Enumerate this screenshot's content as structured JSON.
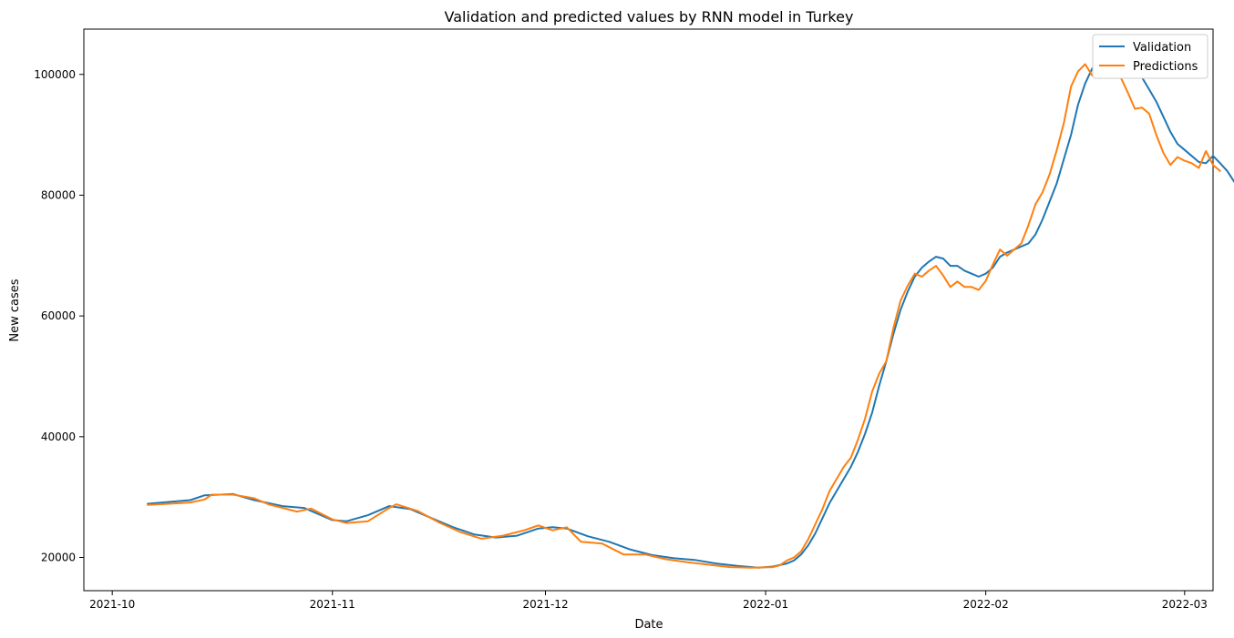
{
  "chart_data": {
    "type": "line",
    "title": "Validation and predicted values by RNN model in Turkey",
    "xlabel": "Date",
    "ylabel": "New cases",
    "x_ticks": [
      "2021-10",
      "2021-11",
      "2021-12",
      "2022-01",
      "2022-02",
      "2022-03"
    ],
    "y_ticks": [
      "20000",
      "40000",
      "60000",
      "80000",
      "100000"
    ],
    "y_tick_values": [
      20000,
      40000,
      60000,
      80000,
      100000
    ],
    "xlim": [
      "2021-09-27",
      "2022-03-05"
    ],
    "ylim": [
      14500,
      107500
    ],
    "grid": false,
    "legend_position": "top-right",
    "colors": {
      "Validation": "#1f77b4",
      "Predictions": "#ff7f0e"
    },
    "series": [
      {
        "name": "Validation",
        "points": [
          [
            "2021-10-06",
            28900
          ],
          [
            "2021-10-09",
            29200
          ],
          [
            "2021-10-12",
            29500
          ],
          [
            "2021-10-14",
            30300
          ],
          [
            "2021-10-18",
            30500
          ],
          [
            "2021-10-21",
            29500
          ],
          [
            "2021-10-25",
            28500
          ],
          [
            "2021-10-28",
            28200
          ],
          [
            "2021-11-01",
            26200
          ],
          [
            "2021-11-03",
            26000
          ],
          [
            "2021-11-06",
            27000
          ],
          [
            "2021-11-09",
            28500
          ],
          [
            "2021-11-12",
            28000
          ],
          [
            "2021-11-15",
            26500
          ],
          [
            "2021-11-18",
            25000
          ],
          [
            "2021-11-21",
            23800
          ],
          [
            "2021-11-24",
            23300
          ],
          [
            "2021-11-27",
            23600
          ],
          [
            "2021-11-30",
            24800
          ],
          [
            "2021-12-02",
            25000
          ],
          [
            "2021-12-04",
            24800
          ],
          [
            "2021-12-07",
            23500
          ],
          [
            "2021-12-10",
            22600
          ],
          [
            "2021-12-13",
            21300
          ],
          [
            "2021-12-16",
            20400
          ],
          [
            "2021-12-19",
            19900
          ],
          [
            "2021-12-22",
            19600
          ],
          [
            "2021-12-25",
            19000
          ],
          [
            "2021-12-28",
            18600
          ],
          [
            "2021-12-31",
            18300
          ],
          [
            "2022-01-02",
            18500
          ],
          [
            "2022-01-04",
            19000
          ],
          [
            "2022-01-05",
            19500
          ],
          [
            "2022-01-06",
            20500
          ],
          [
            "2022-01-07",
            22000
          ],
          [
            "2022-01-08",
            24000
          ],
          [
            "2022-01-09",
            26500
          ],
          [
            "2022-01-10",
            29000
          ],
          [
            "2022-01-11",
            31000
          ],
          [
            "2022-01-12",
            33000
          ],
          [
            "2022-01-13",
            35000
          ],
          [
            "2022-01-14",
            37500
          ],
          [
            "2022-01-15",
            40500
          ],
          [
            "2022-01-16",
            44000
          ],
          [
            "2022-01-17",
            48500
          ],
          [
            "2022-01-18",
            52500
          ],
          [
            "2022-01-19",
            57000
          ],
          [
            "2022-01-20",
            61000
          ],
          [
            "2022-01-21",
            64000
          ],
          [
            "2022-01-22",
            66500
          ],
          [
            "2022-01-23",
            68000
          ],
          [
            "2022-01-24",
            69000
          ],
          [
            "2022-01-25",
            69800
          ],
          [
            "2022-01-26",
            69500
          ],
          [
            "2022-01-27",
            68300
          ],
          [
            "2022-01-28",
            68300
          ],
          [
            "2022-01-29",
            67500
          ],
          [
            "2022-01-30",
            67000
          ],
          [
            "2022-01-31",
            66500
          ],
          [
            "2022-02-01",
            67000
          ],
          [
            "2022-02-02",
            68000
          ],
          [
            "2022-02-03",
            69800
          ],
          [
            "2022-02-04",
            70500
          ],
          [
            "2022-02-05",
            71000
          ],
          [
            "2022-02-06",
            71500
          ],
          [
            "2022-02-07",
            72000
          ],
          [
            "2022-02-08",
            73500
          ],
          [
            "2022-02-09",
            76000
          ],
          [
            "2022-02-10",
            79000
          ],
          [
            "2022-02-11",
            82000
          ],
          [
            "2022-02-12",
            86000
          ],
          [
            "2022-02-13",
            90000
          ],
          [
            "2022-02-14",
            95000
          ],
          [
            "2022-02-15",
            98500
          ],
          [
            "2022-02-16",
            101000
          ],
          [
            "2022-02-17",
            101800
          ],
          [
            "2022-02-18",
            101500
          ],
          [
            "2022-02-19",
            102000
          ],
          [
            "2022-02-20",
            103200
          ],
          [
            "2022-02-21",
            103000
          ],
          [
            "2022-02-22",
            101500
          ],
          [
            "2022-02-23",
            99500
          ],
          [
            "2022-02-24",
            97500
          ],
          [
            "2022-02-25",
            95500
          ],
          [
            "2022-02-26",
            93000
          ],
          [
            "2022-02-27",
            90500
          ],
          [
            "2022-02-28",
            88500
          ],
          [
            "2022-03-01",
            87500
          ],
          [
            "2022-03-02",
            86500
          ],
          [
            "2022-03-03",
            85500
          ],
          [
            "2022-03-04",
            85300
          ],
          [
            "2022-03-05",
            86500
          ],
          [
            "2022-03-06",
            85300
          ],
          [
            "2022-03-07",
            84000
          ],
          [
            "2022-03-08",
            82200
          ]
        ]
      },
      {
        "name": "Predictions",
        "points": [
          [
            "2021-10-06",
            28700
          ],
          [
            "2021-10-09",
            28900
          ],
          [
            "2021-10-12",
            29100
          ],
          [
            "2021-10-14",
            29600
          ],
          [
            "2021-10-15",
            30400
          ],
          [
            "2021-10-18",
            30400
          ],
          [
            "2021-10-21",
            29800
          ],
          [
            "2021-10-23",
            28800
          ],
          [
            "2021-10-27",
            27600
          ],
          [
            "2021-10-29",
            28100
          ],
          [
            "2021-11-01",
            26300
          ],
          [
            "2021-11-03",
            25700
          ],
          [
            "2021-11-06",
            26000
          ],
          [
            "2021-11-09",
            28200
          ],
          [
            "2021-11-10",
            28800
          ],
          [
            "2021-11-13",
            27700
          ],
          [
            "2021-11-16",
            25800
          ],
          [
            "2021-11-19",
            24200
          ],
          [
            "2021-11-22",
            23100
          ],
          [
            "2021-11-25",
            23600
          ],
          [
            "2021-11-28",
            24500
          ],
          [
            "2021-11-30",
            25300
          ],
          [
            "2021-12-02",
            24500
          ],
          [
            "2021-12-04",
            25000
          ],
          [
            "2021-12-06",
            22600
          ],
          [
            "2021-12-09",
            22300
          ],
          [
            "2021-12-12",
            20500
          ],
          [
            "2021-12-15",
            20500
          ],
          [
            "2021-12-18",
            19700
          ],
          [
            "2021-12-21",
            19200
          ],
          [
            "2021-12-24",
            18800
          ],
          [
            "2021-12-27",
            18400
          ],
          [
            "2021-12-30",
            18300
          ],
          [
            "2022-01-02",
            18400
          ],
          [
            "2022-01-03",
            18700
          ],
          [
            "2022-01-04",
            19500
          ],
          [
            "2022-01-05",
            20000
          ],
          [
            "2022-01-06",
            21000
          ],
          [
            "2022-01-07",
            23000
          ],
          [
            "2022-01-08",
            25500
          ],
          [
            "2022-01-09",
            28000
          ],
          [
            "2022-01-10",
            31000
          ],
          [
            "2022-01-11",
            33000
          ],
          [
            "2022-01-12",
            35000
          ],
          [
            "2022-01-13",
            36500
          ],
          [
            "2022-01-14",
            39500
          ],
          [
            "2022-01-15",
            43000
          ],
          [
            "2022-01-16",
            47500
          ],
          [
            "2022-01-17",
            50500
          ],
          [
            "2022-01-18",
            52500
          ],
          [
            "2022-01-19",
            58000
          ],
          [
            "2022-01-20",
            62500
          ],
          [
            "2022-01-21",
            65000
          ],
          [
            "2022-01-22",
            67000
          ],
          [
            "2022-01-23",
            66500
          ],
          [
            "2022-01-24",
            67500
          ],
          [
            "2022-01-25",
            68300
          ],
          [
            "2022-01-26",
            66700
          ],
          [
            "2022-01-27",
            64800
          ],
          [
            "2022-01-28",
            65700
          ],
          [
            "2022-01-29",
            64800
          ],
          [
            "2022-01-30",
            64800
          ],
          [
            "2022-01-31",
            64300
          ],
          [
            "2022-02-01",
            65800
          ],
          [
            "2022-02-02",
            68500
          ],
          [
            "2022-02-03",
            71000
          ],
          [
            "2022-02-04",
            70000
          ],
          [
            "2022-02-05",
            71000
          ],
          [
            "2022-02-06",
            72000
          ],
          [
            "2022-02-07",
            75000
          ],
          [
            "2022-02-08",
            78500
          ],
          [
            "2022-02-09",
            80500
          ],
          [
            "2022-02-10",
            83500
          ],
          [
            "2022-02-11",
            87500
          ],
          [
            "2022-02-12",
            92000
          ],
          [
            "2022-02-13",
            98000
          ],
          [
            "2022-02-14",
            100500
          ],
          [
            "2022-02-15",
            101700
          ],
          [
            "2022-02-16",
            99800
          ],
          [
            "2022-02-17",
            99400
          ],
          [
            "2022-02-18",
            100500
          ],
          [
            "2022-02-19",
            102000
          ],
          [
            "2022-02-20",
            99500
          ],
          [
            "2022-02-21",
            97000
          ],
          [
            "2022-02-22",
            94300
          ],
          [
            "2022-02-23",
            94500
          ],
          [
            "2022-02-24",
            93500
          ],
          [
            "2022-02-25",
            90000
          ],
          [
            "2022-02-26",
            87000
          ],
          [
            "2022-02-27",
            85000
          ],
          [
            "2022-02-28",
            86300
          ],
          [
            "2022-03-01",
            85700
          ],
          [
            "2022-03-02",
            85300
          ],
          [
            "2022-03-03",
            84500
          ],
          [
            "2022-03-04",
            87300
          ],
          [
            "2022-03-05",
            85000
          ],
          [
            "2022-03-06",
            84000
          ]
        ]
      }
    ]
  }
}
